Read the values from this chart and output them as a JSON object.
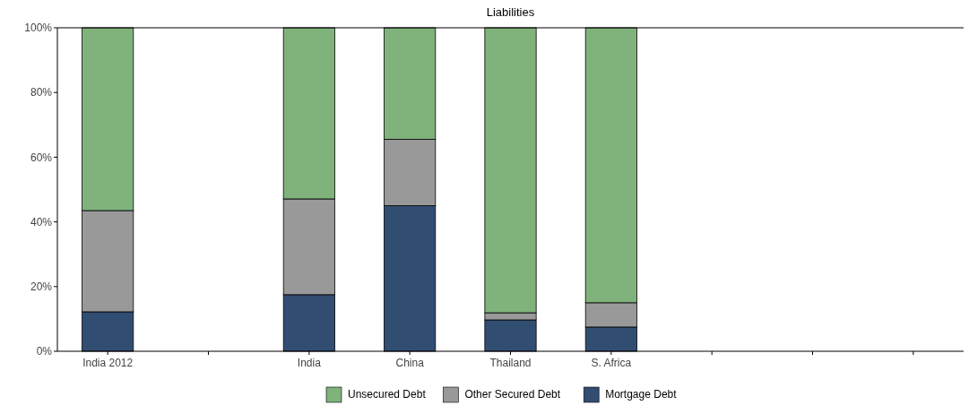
{
  "chart_data": {
    "type": "bar",
    "title": "Liabilities",
    "stacked": true,
    "categories": [
      "India 2012",
      null,
      "India",
      "China",
      "Thailand",
      "S. Africa",
      null,
      null,
      null
    ],
    "series": [
      {
        "name": "Mortgage Debt",
        "color": "#324d72",
        "values": [
          12.2,
          null,
          17.5,
          45.0,
          9.7,
          7.5,
          null,
          null,
          null
        ]
      },
      {
        "name": "Other Secured Debt",
        "color": "#999999",
        "values": [
          31.3,
          null,
          29.6,
          20.5,
          2.2,
          7.5,
          null,
          null,
          null
        ]
      },
      {
        "name": "Unsecured Debt",
        "color": "#80b27c",
        "values": [
          56.5,
          null,
          52.9,
          34.5,
          88.1,
          85.0,
          null,
          null,
          null
        ]
      }
    ],
    "ylim": [
      0,
      100
    ],
    "yticks": [
      {
        "value": 0,
        "label": "0%"
      },
      {
        "value": 20,
        "label": "20%"
      },
      {
        "value": 40,
        "label": "40%"
      },
      {
        "value": 60,
        "label": "60%"
      },
      {
        "value": 80,
        "label": "80%"
      },
      {
        "value": 100,
        "label": "100%"
      }
    ],
    "grid": false,
    "legend": "bottom"
  }
}
